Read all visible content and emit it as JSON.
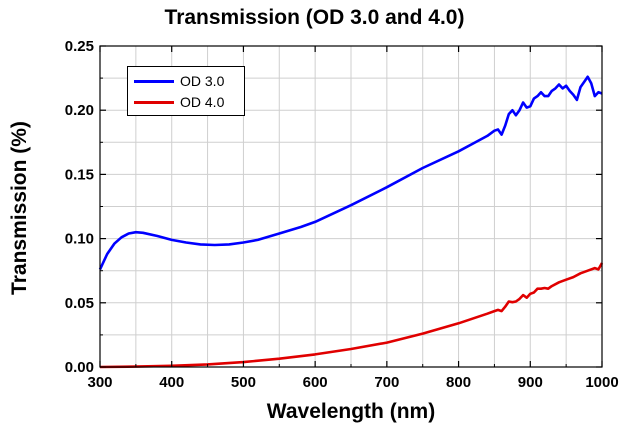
{
  "chart_data": {
    "type": "line",
    "title": "Transmission (OD 3.0 and 4.0)",
    "xlabel": "Wavelength (nm)",
    "ylabel": "Transmission (%)",
    "xlim": [
      300,
      1000
    ],
    "ylim": [
      0,
      0.25
    ],
    "xticks": [
      300,
      400,
      500,
      600,
      700,
      800,
      900,
      1000
    ],
    "xtick_labels": [
      "300",
      "400",
      "500",
      "600",
      "700",
      "800",
      "900",
      "1000"
    ],
    "yticks": [
      0.0,
      0.05,
      0.1,
      0.15,
      0.2,
      0.25
    ],
    "ytick_labels": [
      "0.00",
      "0.05",
      "0.10",
      "0.15",
      "0.20",
      "0.25"
    ],
    "grid": true,
    "legend_position": "top-left",
    "series": [
      {
        "name": "OD 3.0",
        "color": "#0000ff",
        "x": [
          300,
          310,
          320,
          330,
          340,
          350,
          360,
          380,
          400,
          420,
          440,
          460,
          480,
          500,
          520,
          550,
          580,
          600,
          650,
          700,
          750,
          800,
          820,
          840,
          850,
          855,
          860,
          865,
          870,
          875,
          880,
          885,
          890,
          895,
          900,
          905,
          910,
          915,
          920,
          925,
          930,
          935,
          940,
          945,
          950,
          955,
          960,
          965,
          970,
          975,
          980,
          985,
          990,
          995,
          1000
        ],
        "y": [
          0.076,
          0.088,
          0.096,
          0.101,
          0.104,
          0.105,
          0.1045,
          0.102,
          0.099,
          0.097,
          0.0955,
          0.095,
          0.0955,
          0.097,
          0.099,
          0.104,
          0.109,
          0.113,
          0.126,
          0.14,
          0.155,
          0.168,
          0.174,
          0.18,
          0.184,
          0.185,
          0.181,
          0.188,
          0.197,
          0.2,
          0.196,
          0.2,
          0.206,
          0.202,
          0.203,
          0.209,
          0.211,
          0.214,
          0.211,
          0.211,
          0.215,
          0.217,
          0.22,
          0.217,
          0.219,
          0.215,
          0.212,
          0.208,
          0.218,
          0.222,
          0.226,
          0.221,
          0.211,
          0.214,
          0.213
        ]
      },
      {
        "name": "OD 4.0",
        "color": "#e00000",
        "x": [
          300,
          350,
          400,
          450,
          500,
          550,
          600,
          650,
          700,
          750,
          800,
          840,
          850,
          855,
          860,
          865,
          870,
          875,
          880,
          885,
          890,
          895,
          900,
          905,
          910,
          915,
          920,
          925,
          930,
          940,
          950,
          960,
          970,
          980,
          990,
          995,
          1000
        ],
        "y": [
          0.0,
          0.0003,
          0.0009,
          0.002,
          0.0038,
          0.0065,
          0.0098,
          0.014,
          0.019,
          0.026,
          0.034,
          0.0415,
          0.0435,
          0.0445,
          0.0435,
          0.047,
          0.051,
          0.0505,
          0.051,
          0.053,
          0.056,
          0.054,
          0.057,
          0.058,
          0.061,
          0.061,
          0.0615,
          0.061,
          0.063,
          0.066,
          0.068,
          0.07,
          0.073,
          0.075,
          0.077,
          0.076,
          0.081
        ]
      }
    ]
  }
}
